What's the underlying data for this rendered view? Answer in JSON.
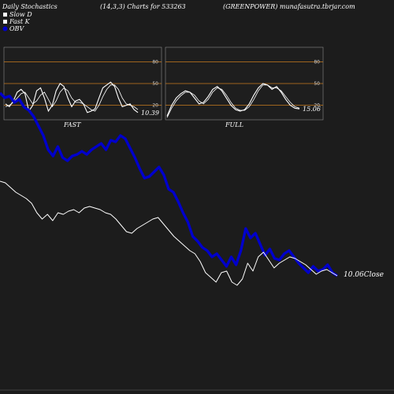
{
  "header": {
    "left": "Daily Stochastics",
    "center": "(14,3,3) Charts for 533263",
    "right": "(GREENPOWER) munafasutra.tbrjar.com"
  },
  "legend": [
    {
      "label": "Slow  D",
      "color": "#ffffff",
      "icon": "square-swatch-icon"
    },
    {
      "label": "Fast K",
      "color": "#ffffff",
      "icon": "square-swatch-icon"
    },
    {
      "label": "OBV",
      "color": "#0000cc",
      "icon": "circle-swatch-icon"
    }
  ],
  "colors": {
    "background": "#1c1c1c",
    "panel": "#1e1e1e",
    "refline": "#c87b1e",
    "obv": "#0000cc",
    "price": "#ffffff"
  },
  "chart_data": [
    {
      "type": "line",
      "panel": "FAST",
      "title": "FAST",
      "ylim": [
        0,
        100
      ],
      "yticks": [
        20,
        50,
        80
      ],
      "reference_lines": [
        20,
        50,
        80
      ],
      "last_value_label": "10.39",
      "series": [
        {
          "name": "Fast K",
          "values": [
            22,
            18,
            26,
            38,
            42,
            36,
            12,
            20,
            40,
            44,
            30,
            12,
            20,
            40,
            50,
            46,
            30,
            18,
            26,
            28,
            22,
            10,
            12,
            15,
            30,
            44,
            48,
            52,
            46,
            30,
            18,
            20,
            22,
            14,
            10
          ]
        },
        {
          "name": "Slow  D",
          "values": [
            18,
            20,
            24,
            30,
            36,
            38,
            30,
            22,
            26,
            34,
            38,
            28,
            18,
            26,
            38,
            44,
            40,
            30,
            24,
            24,
            22,
            18,
            14,
            12,
            20,
            32,
            42,
            48,
            48,
            42,
            30,
            22,
            20,
            18,
            14
          ]
        }
      ]
    },
    {
      "type": "line",
      "panel": "FULL",
      "title": "FULL",
      "ylim": [
        0,
        100
      ],
      "yticks": [
        20,
        50,
        80
      ],
      "reference_lines": [
        20,
        50,
        80
      ],
      "last_value_label": "15.06",
      "series": [
        {
          "name": "Fast K",
          "values": [
            5,
            20,
            30,
            36,
            40,
            38,
            30,
            22,
            24,
            32,
            42,
            46,
            40,
            30,
            20,
            14,
            12,
            14,
            22,
            34,
            44,
            50,
            48,
            42,
            46,
            38,
            28,
            20,
            16,
            15
          ]
        },
        {
          "name": "Slow  D",
          "values": [
            3,
            16,
            26,
            33,
            38,
            38,
            34,
            26,
            22,
            28,
            38,
            44,
            42,
            34,
            24,
            16,
            13,
            13,
            18,
            28,
            40,
            48,
            48,
            44,
            44,
            40,
            32,
            24,
            18,
            16
          ]
        }
      ]
    },
    {
      "type": "line",
      "panel": "price-obv",
      "last_value_label": "10.06",
      "last_value_suffix": "Close",
      "series": [
        {
          "name": "OBV",
          "values": [
            118,
            124,
            122,
            130,
            126,
            136,
            140,
            148,
            160,
            172,
            190,
            198,
            186,
            200,
            204,
            198,
            196,
            192,
            196,
            190,
            186,
            182,
            190,
            178,
            180,
            172,
            176,
            188,
            200,
            214,
            226,
            224,
            218,
            212,
            222,
            240,
            244,
            256,
            270,
            282,
            300,
            306,
            314,
            318,
            326,
            322,
            330,
            338,
            326,
            336,
            318,
            290,
            302,
            296,
            310,
            324,
            316,
            328,
            330,
            322,
            318,
            326,
            334,
            340,
            346,
            338,
            344,
            342,
            336,
            346,
            350
          ]
        },
        {
          "name": "Close",
          "values": [
            230,
            232,
            238,
            244,
            248,
            252,
            258,
            270,
            278,
            272,
            280,
            270,
            272,
            268,
            266,
            270,
            264,
            262,
            264,
            266,
            270,
            272,
            278,
            286,
            294,
            296,
            290,
            286,
            282,
            278,
            276,
            284,
            292,
            300,
            306,
            312,
            318,
            322,
            332,
            346,
            352,
            358,
            346,
            344,
            358,
            362,
            354,
            334,
            344,
            326,
            320,
            330,
            340,
            334,
            330,
            326,
            328,
            332,
            336,
            342,
            348,
            344,
            342,
            346,
            350
          ]
        }
      ]
    }
  ]
}
